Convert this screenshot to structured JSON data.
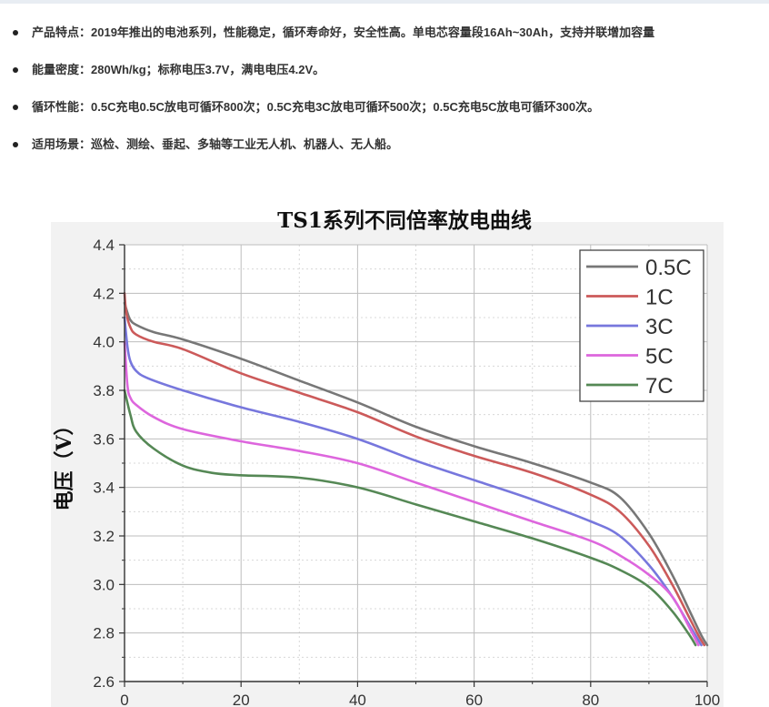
{
  "features": [
    {
      "text": "产品特点：2019年推出的电池系列，性能稳定，循环寿命好，安全性高。单电芯容量段16Ah~30Ah，支持并联增加容量"
    },
    {
      "text": "能量密度：280Wh/kg；标称电压3.7V，满电电压4.2V。"
    },
    {
      "text": "循环性能：0.5C充电0.5C放电可循环800次；0.5C充电3C放电可循环500次；0.5C充电5C放电可循环300次。"
    },
    {
      "text": "适用场景：巡检、测绘、垂起、多轴等工业无人机、机器人、无人船。"
    }
  ],
  "chart_data": {
    "type": "line",
    "title": "TS1系列不同倍率放电曲线",
    "ylabel": "电压（V）",
    "xlabel": "",
    "xlim": [
      0,
      100
    ],
    "ylim": [
      2.6,
      4.4
    ],
    "xticks": [
      0,
      20,
      40,
      60,
      80,
      100
    ],
    "yticks": [
      "2.6",
      "2.8",
      "3.0",
      "3.2",
      "3.4",
      "3.6",
      "3.8",
      "4.0",
      "4.2",
      "4.4"
    ],
    "grid": true,
    "legend_position": "top-right",
    "series": [
      {
        "name": "0.5C",
        "color": "#777777",
        "x": [
          0,
          0.5,
          1,
          2,
          5,
          10,
          20,
          30,
          40,
          50,
          60,
          70,
          80,
          85,
          90,
          94,
          97,
          99,
          100
        ],
        "y": [
          4.16,
          4.12,
          4.09,
          4.07,
          4.04,
          4.01,
          3.93,
          3.84,
          3.75,
          3.65,
          3.57,
          3.5,
          3.42,
          3.36,
          3.21,
          3.04,
          2.89,
          2.79,
          2.75
        ]
      },
      {
        "name": "1C",
        "color": "#cc5a5a",
        "x": [
          0,
          0.3,
          1,
          2,
          5,
          10,
          20,
          30,
          40,
          50,
          60,
          70,
          80,
          85,
          90,
          94,
          97,
          98.5,
          99.5
        ],
        "y": [
          4.2,
          4.12,
          4.06,
          4.03,
          4.0,
          3.97,
          3.87,
          3.79,
          3.71,
          3.61,
          3.53,
          3.46,
          3.37,
          3.3,
          3.16,
          3.0,
          2.86,
          2.79,
          2.75
        ]
      },
      {
        "name": "3C",
        "color": "#7777dd",
        "x": [
          0,
          0.5,
          1,
          2,
          4,
          10,
          20,
          30,
          40,
          50,
          60,
          70,
          80,
          85,
          90,
          94,
          97,
          99
        ],
        "y": [
          4.1,
          3.98,
          3.92,
          3.88,
          3.85,
          3.8,
          3.73,
          3.67,
          3.6,
          3.51,
          3.43,
          3.35,
          3.26,
          3.2,
          3.08,
          2.95,
          2.83,
          2.75
        ]
      },
      {
        "name": "5C",
        "color": "#dd66dd",
        "x": [
          0,
          0.5,
          1,
          2,
          5,
          10,
          20,
          30,
          40,
          50,
          60,
          70,
          80,
          85,
          90,
          94,
          97,
          98.5
        ],
        "y": [
          4.0,
          3.82,
          3.77,
          3.74,
          3.69,
          3.64,
          3.59,
          3.55,
          3.5,
          3.42,
          3.34,
          3.26,
          3.18,
          3.12,
          3.04,
          2.95,
          2.82,
          2.75
        ]
      },
      {
        "name": "7C",
        "color": "#558855",
        "x": [
          0,
          1,
          2,
          5,
          10,
          15,
          20,
          30,
          40,
          50,
          60,
          70,
          80,
          85,
          90,
          94,
          97,
          98
        ],
        "y": [
          3.8,
          3.7,
          3.63,
          3.56,
          3.49,
          3.46,
          3.45,
          3.44,
          3.4,
          3.33,
          3.26,
          3.19,
          3.11,
          3.06,
          2.99,
          2.89,
          2.79,
          2.75
        ]
      }
    ]
  }
}
